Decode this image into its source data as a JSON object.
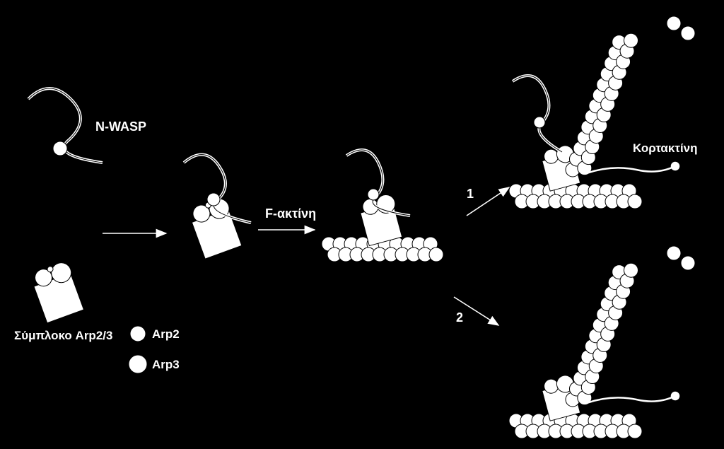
{
  "labels": {
    "nwasp": "N-WASP",
    "factin": "F-ακτίνη",
    "cortactin": "Κορτακτίνη",
    "complex": "Σύμπλοκο Arp2/3",
    "arp2": "Arp2",
    "arp3": "Arp3",
    "branch1": "1",
    "branch2": "2"
  },
  "style": {
    "bg": "#000000",
    "fg": "#ffffff",
    "outline": "#000000",
    "monomer_radius": 10,
    "arp2_radius": 12,
    "arp3_radius": 14,
    "box_size": 55,
    "label_fontsize": 18,
    "legend_fontsize": 17,
    "branch_fontsize": 18,
    "stroke_width": 2,
    "arrow_stroke": 1.6
  },
  "diagram": {
    "type": "biological-pathway",
    "stages": [
      "nwasp-alone",
      "arp-complex-alone",
      "binding",
      "on-filament",
      "branch-with-cortactin",
      "branch-without-nwasp"
    ],
    "filament_rows": 2,
    "branch_angle_deg": 70
  }
}
